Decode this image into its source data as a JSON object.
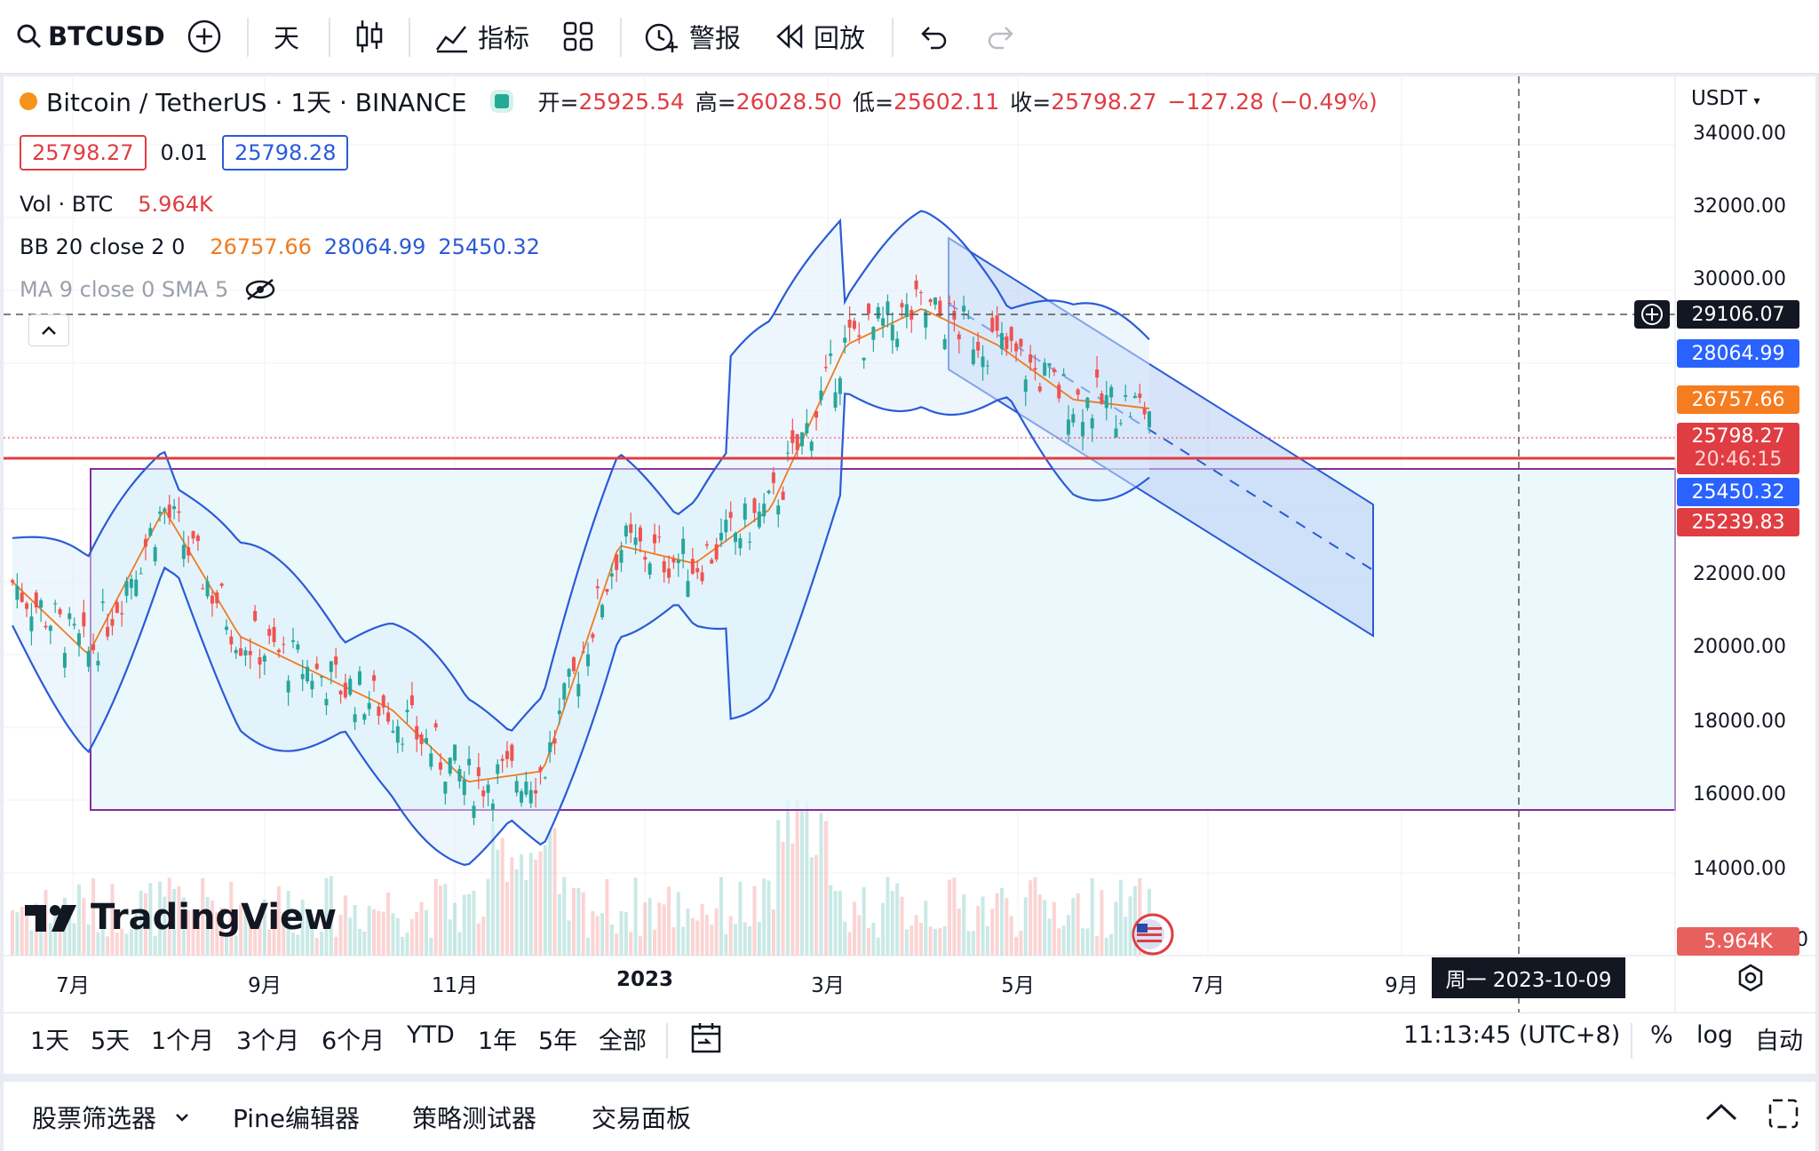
{
  "toolbar": {
    "symbol": "BTCUSD",
    "interval": "天",
    "indicators_label": "指标",
    "alert_label": "警报",
    "replay_label": "回放"
  },
  "legend": {
    "title": "Bitcoin / TetherUS · 1天 · BINANCE",
    "open_label": "开=",
    "open": "25925.54",
    "high_label": "高=",
    "high": "26028.50",
    "low_label": "低=",
    "low": "25602.11",
    "close_label": "收=",
    "close": "25798.27",
    "change": "−127.28 (−0.49%)",
    "sell_price": "25798.27",
    "spread": "0.01",
    "buy_price": "25798.28",
    "vol_name": "Vol · BTC",
    "vol_value": "5.964K",
    "bb_name": "BB 20 close 2 0",
    "bb_basis": "26757.66",
    "bb_upper": "28064.99",
    "bb_lower": "25450.32",
    "ma_name": "MA 9 close 0 SMA 5"
  },
  "price_axis": {
    "currency": "USDT",
    "ticks": [
      "34000.00",
      "32000.00",
      "30000.00",
      "22000.00",
      "20000.00",
      "18000.00",
      "16000.00",
      "14000.00"
    ],
    "crosshair_price": "29106.07",
    "bb_upper_tag": "28064.99",
    "bb_basis_tag": "26757.66",
    "last_price_tag": "25798.27",
    "countdown": "20:46:15",
    "bb_lower_tag": "25450.32",
    "level_tag": "25239.83",
    "volume_tag": "5.964K",
    "zero_tick": "0"
  },
  "time_axis": {
    "ticks": [
      "7月",
      "9月",
      "11月",
      "2023",
      "3月",
      "5月",
      "7月",
      "9月"
    ],
    "crosshair_date": "周一 2023-10-09"
  },
  "watermark": "TradingView",
  "range_bar": {
    "ranges": [
      "1天",
      "5天",
      "1个月",
      "3个月",
      "6个月",
      "YTD",
      "1年",
      "5年",
      "全部"
    ],
    "clock": "11:13:45 (UTC+8)",
    "percent": "%",
    "log": "log",
    "auto": "自动"
  },
  "panels": [
    "股票筛选器",
    "Pine编辑器",
    "策略测试器",
    "交易面板"
  ],
  "colors": {
    "up": "#26a69a",
    "down": "#ef5350",
    "bb": "#2a5bd7",
    "basis": "#f07b1f",
    "level": "#e03d43",
    "box": "#8a2a9e"
  },
  "chart_data": {
    "type": "candlestick",
    "x": [
      "7月",
      "9月",
      "11月",
      "2023",
      "3月",
      "5月"
    ],
    "bb_price_samples": [
      22000,
      20000,
      24000,
      20500,
      19500,
      18500,
      16500,
      16800,
      23000,
      22500,
      24000,
      28500,
      29500,
      28500,
      27000,
      26757.66
    ],
    "ylim": [
      14000,
      34000
    ]
  }
}
